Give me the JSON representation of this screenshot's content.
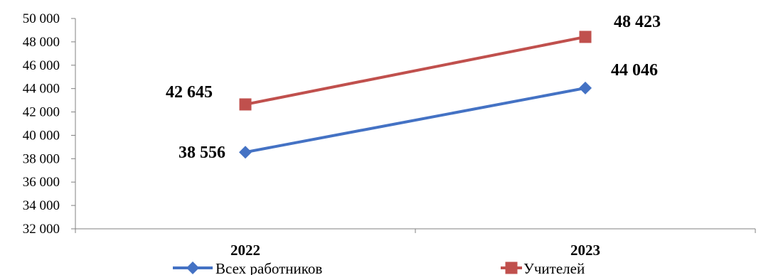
{
  "chart_data": {
    "type": "line",
    "categories": [
      "2022",
      "2023"
    ],
    "series": [
      {
        "name": "Всех работников",
        "values": [
          38556,
          44046
        ],
        "labels": [
          "38 556",
          "44 046"
        ],
        "color": "#4472C4",
        "marker": "diamond"
      },
      {
        "name": "Учителей",
        "values": [
          42645,
          48423
        ],
        "labels": [
          "42 645",
          "48 423"
        ],
        "color": "#C0504D",
        "marker": "square"
      }
    ],
    "yticks": [
      "32 000",
      "34 000",
      "36 000",
      "38 000",
      "40 000",
      "42 000",
      "44 000",
      "46 000",
      "48 000",
      "50 000"
    ],
    "ylim": [
      32000,
      50000
    ],
    "grid": false,
    "legend": "bottom"
  }
}
